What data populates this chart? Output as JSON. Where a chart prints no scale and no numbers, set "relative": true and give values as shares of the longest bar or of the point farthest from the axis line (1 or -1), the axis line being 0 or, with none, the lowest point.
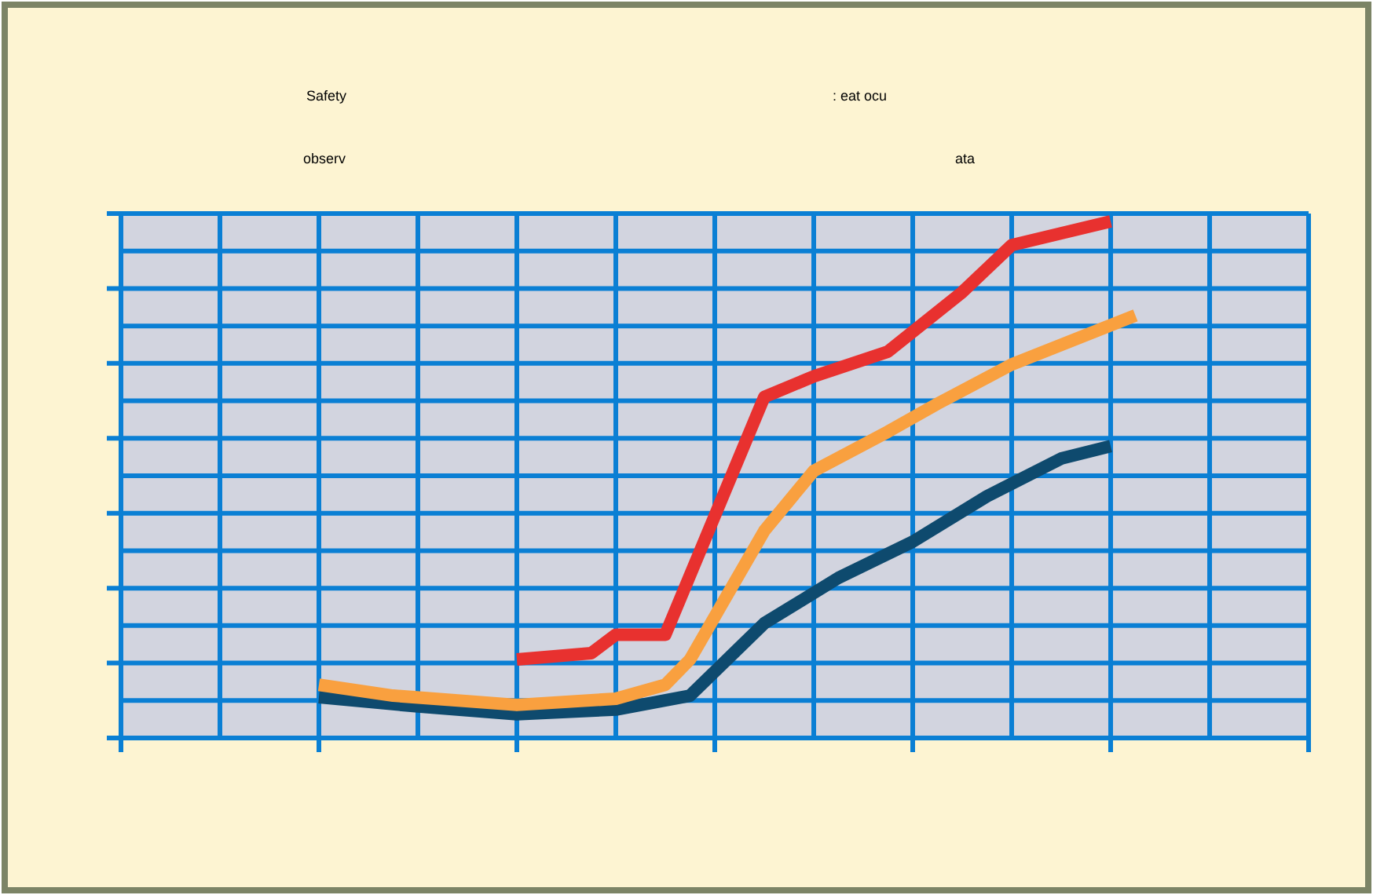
{
  "chart_data": {
    "type": "line",
    "relative": true,
    "title": "Safety",
    "annotations": [
      ": eat ocu",
      "observ",
      "ata"
    ],
    "grid": true,
    "marker": "none",
    "line_style": "solid",
    "categories": [
      null,
      null,
      null,
      null,
      null,
      null,
      null,
      null,
      null,
      null,
      null,
      null,
      null,
      null,
      null,
      null,
      null,
      null,
      null,
      null,
      null,
      null,
      null,
      null,
      null,
      null,
      null,
      null,
      null,
      null,
      null,
      null,
      null,
      null,
      null,
      null,
      null,
      null,
      null,
      null,
      null,
      null,
      null,
      null,
      null,
      null,
      null,
      null,
      null
    ],
    "series": [
      {
        "color": "#0e4a6e",
        "values": [
          null,
          null,
          null,
          null,
          null,
          null,
          null,
          null,
          0.079,
          null,
          null,
          null,
          0.061,
          null,
          null,
          null,
          0.046,
          null,
          null,
          null,
          0.055,
          null,
          null,
          0.082,
          null,
          null,
          0.222,
          null,
          null,
          0.31,
          null,
          null,
          0.38,
          null,
          null,
          0.468,
          null,
          null,
          0.541,
          null,
          0.565,
          null,
          null,
          null,
          null,
          null,
          null,
          null,
          null
        ]
      },
      {
        "color": "#f9a03f",
        "values": [
          null,
          null,
          null,
          null,
          null,
          null,
          null,
          null,
          0.103,
          null,
          null,
          0.082,
          null,
          null,
          null,
          null,
          0.064,
          null,
          null,
          null,
          0.076,
          null,
          0.103,
          0.152,
          null,
          null,
          0.401,
          null,
          0.517,
          null,
          null,
          0.593,
          null,
          0.647,
          null,
          null,
          0.723,
          null,
          null,
          null,
          null,
          0.818,
          null,
          null,
          null,
          null,
          null,
          null,
          null
        ]
      },
      {
        "color": "#e8312f",
        "values": [
          null,
          null,
          null,
          null,
          null,
          null,
          null,
          null,
          null,
          null,
          null,
          null,
          null,
          null,
          null,
          null,
          0.152,
          null,
          null,
          0.164,
          0.2,
          null,
          0.2,
          null,
          null,
          null,
          0.66,
          null,
          0.7,
          null,
          null,
          0.748,
          null,
          null,
          0.863,
          null,
          0.954,
          null,
          null,
          null,
          1,
          null,
          null,
          null,
          null,
          null,
          null,
          null,
          null
        ]
      }
    ]
  }
}
